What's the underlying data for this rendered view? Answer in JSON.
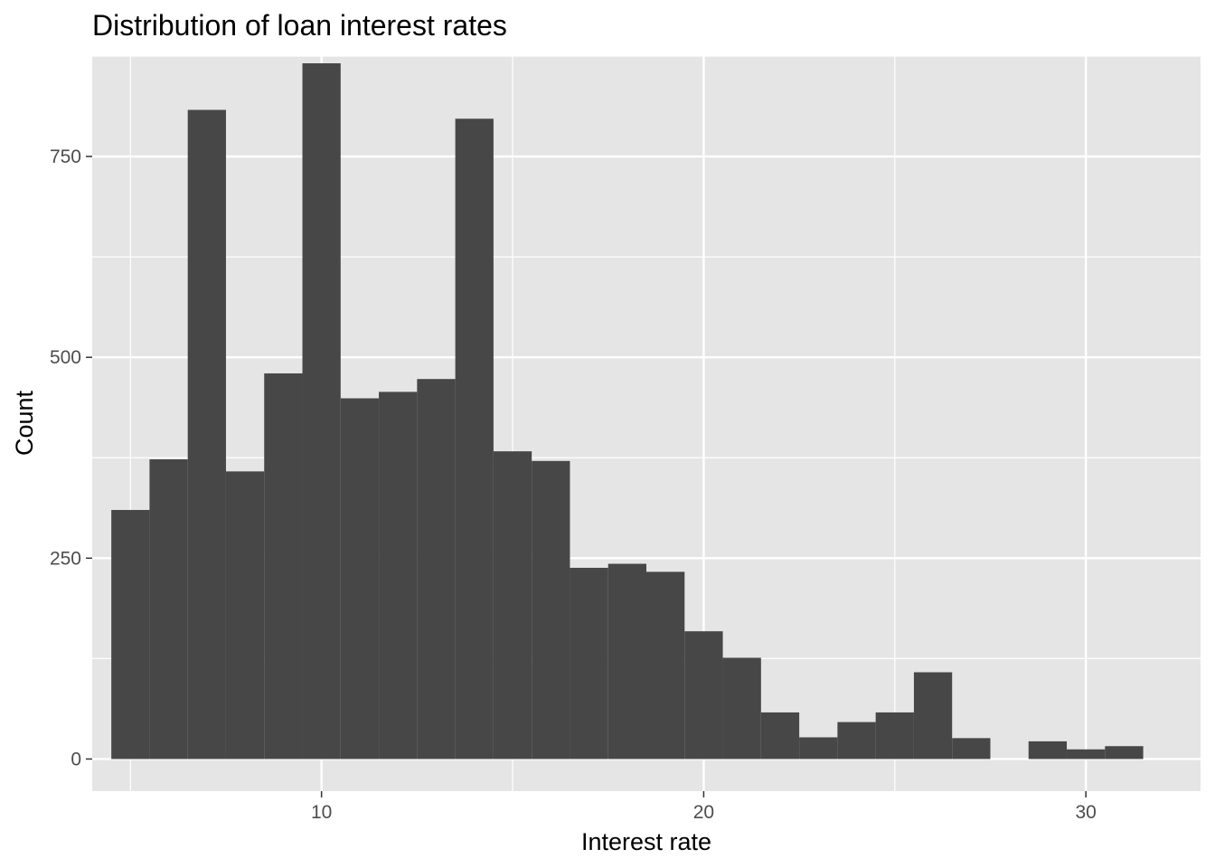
{
  "chart_data": {
    "type": "bar",
    "title": "Distribution of loan interest rates",
    "xlabel": "Interest rate",
    "ylabel": "Count",
    "xlim": [
      4.0,
      33.0
    ],
    "ylim": [
      -40,
      875
    ],
    "x_ticks": [
      10,
      20,
      30
    ],
    "x_minor_ticks": [
      5,
      15,
      25
    ],
    "y_ticks": [
      0,
      250,
      500,
      750
    ],
    "y_minor_ticks": [
      125,
      375,
      625,
      875
    ],
    "bin_width": 1.0,
    "bins_start": [
      4.5,
      5.5,
      6.5,
      7.5,
      8.5,
      9.5,
      10.5,
      11.5,
      12.5,
      13.5,
      14.5,
      15.5,
      16.5,
      17.5,
      18.5,
      19.5,
      20.5,
      21.5,
      22.5,
      23.5,
      24.5,
      25.5,
      26.5,
      27.5,
      28.5,
      29.5,
      30.5
    ],
    "values": [
      310,
      373,
      808,
      358,
      480,
      866,
      449,
      457,
      473,
      797,
      383,
      371,
      238,
      243,
      233,
      159,
      126,
      58,
      27,
      46,
      58,
      108,
      26,
      0,
      22,
      12,
      16
    ],
    "grid": true,
    "colors": {
      "panel_background": "#e5e5e5",
      "grid_line": "#ffffff",
      "bar_fill": "#474747",
      "tick_color": "#333333"
    }
  }
}
